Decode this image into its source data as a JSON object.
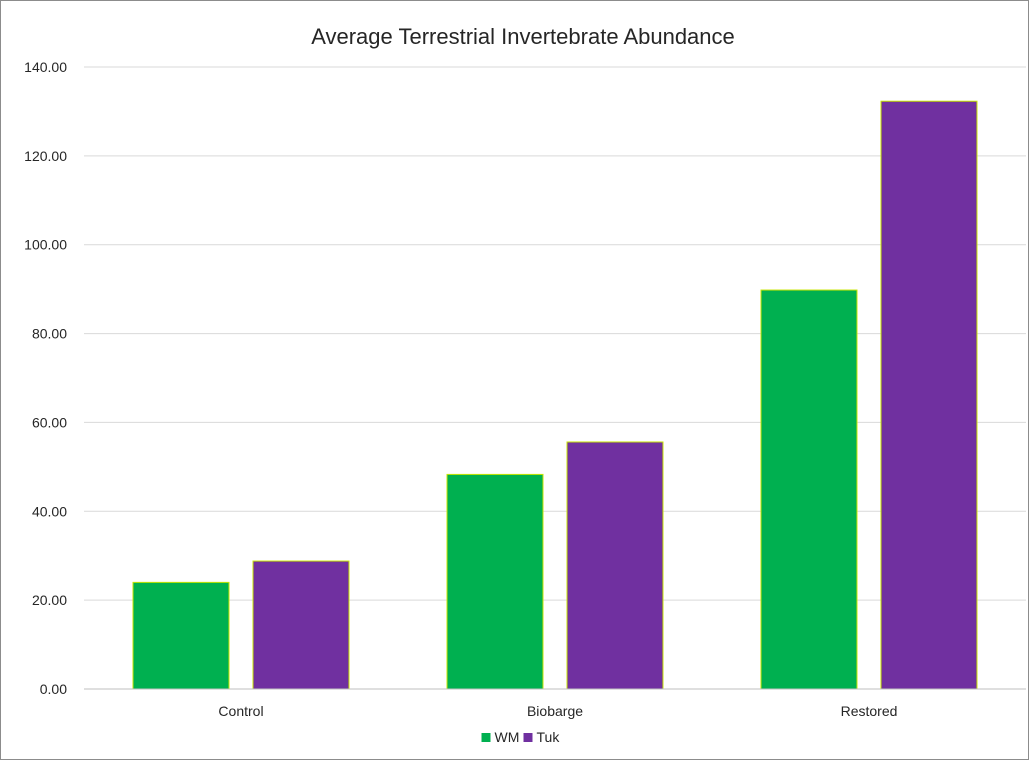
{
  "chart_data": {
    "type": "bar",
    "title": "Average Terrestrial Invertebrate Abundance",
    "xlabel": "",
    "ylabel": "",
    "categories": [
      "Control",
      "Biobarge",
      "Restored"
    ],
    "series": [
      {
        "name": "WM",
        "color": "#00b050",
        "values": [
          24.0,
          48.3,
          89.8
        ]
      },
      {
        "name": "Tuk",
        "color": "#7030a0",
        "values": [
          28.8,
          55.6,
          132.3
        ]
      }
    ],
    "bar_outline_color": "#c8e600",
    "ylim": [
      0,
      140
    ],
    "yticks": [
      "0.00",
      "20.00",
      "40.00",
      "60.00",
      "80.00",
      "100.00",
      "120.00",
      "140.00"
    ],
    "grid": true,
    "legend_position": "bottom"
  }
}
